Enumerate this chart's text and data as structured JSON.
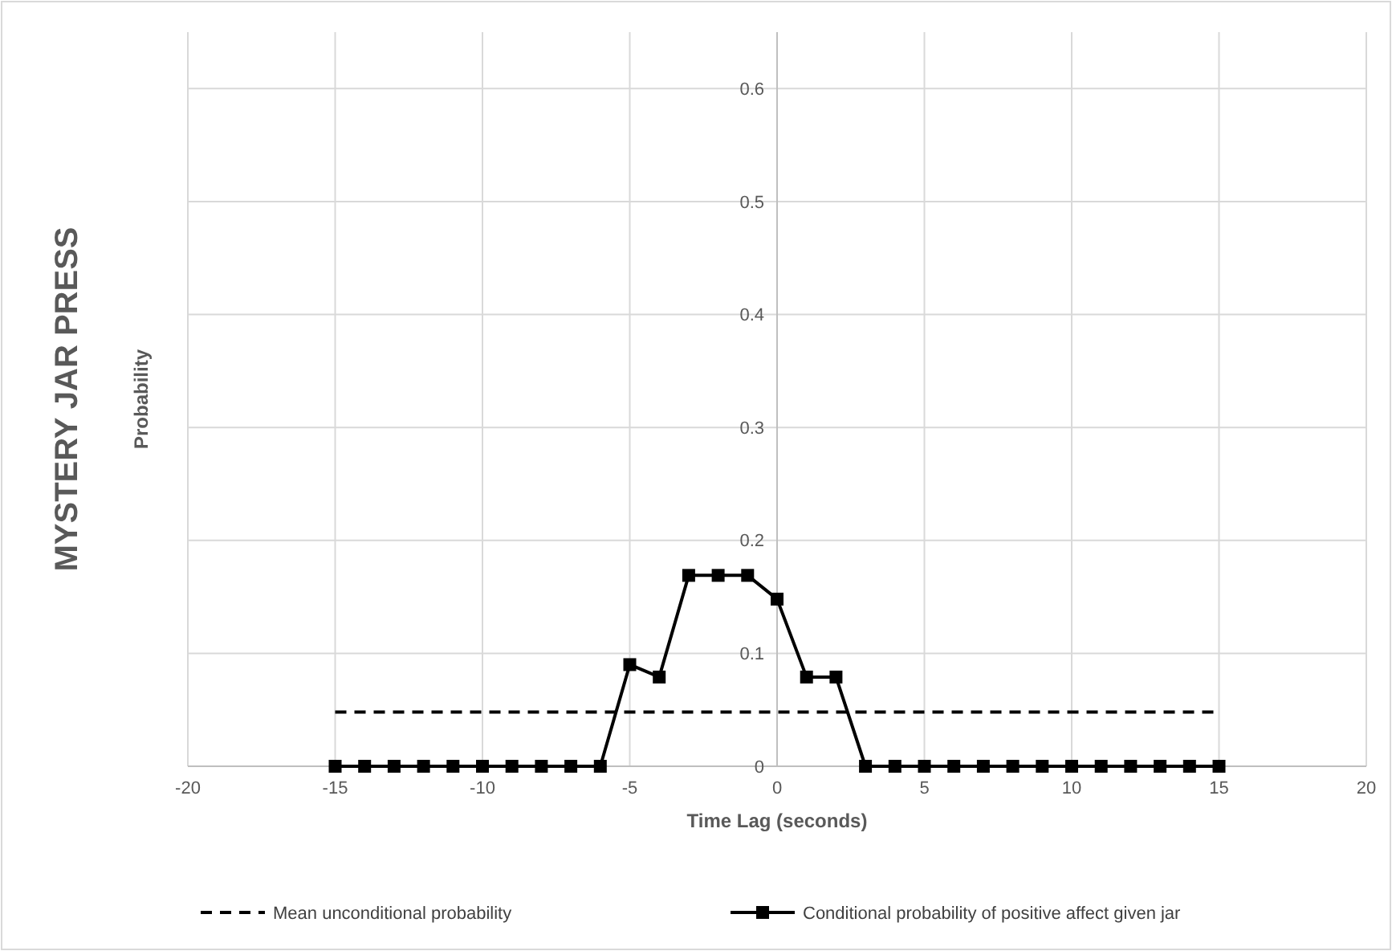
{
  "chart_data": {
    "type": "line",
    "title": "MYSTERY JAR PRESS",
    "xlabel": "Time Lag (seconds)",
    "ylabel": "Probability",
    "xlim": [
      -20,
      20
    ],
    "xticks": [
      -20,
      -15,
      -10,
      -5,
      0,
      5,
      10,
      15,
      20
    ],
    "ylim": [
      0,
      0.65
    ],
    "yticks": [
      0,
      0.1,
      0.2,
      0.3,
      0.4,
      0.5,
      0.6
    ],
    "grid": true,
    "legend": "bottom",
    "series": [
      {
        "name": "Mean unconditional probability",
        "color": "#000000",
        "line_style": "dashed",
        "marker": "none",
        "x": [
          -15,
          15
        ],
        "values": [
          0.048,
          0.048
        ]
      },
      {
        "name": "Conditional probability of positive affect given jar",
        "color": "#000000",
        "line_style": "solid",
        "marker": "square",
        "x": [
          -15,
          -14,
          -13,
          -12,
          -11,
          -10,
          -9,
          -8,
          -7,
          -6,
          -5,
          -4,
          -3,
          -2,
          -1,
          0,
          1,
          2,
          3,
          4,
          5,
          6,
          7,
          8,
          9,
          10,
          11,
          12,
          13,
          14,
          15
        ],
        "values": [
          0,
          0,
          0,
          0,
          0,
          0,
          0,
          0,
          0,
          0,
          0.09,
          0.079,
          0.169,
          0.169,
          0.169,
          0.148,
          0.079,
          0.079,
          0,
          0,
          0,
          0,
          0,
          0,
          0,
          0,
          0,
          0,
          0,
          0,
          0
        ]
      }
    ]
  }
}
